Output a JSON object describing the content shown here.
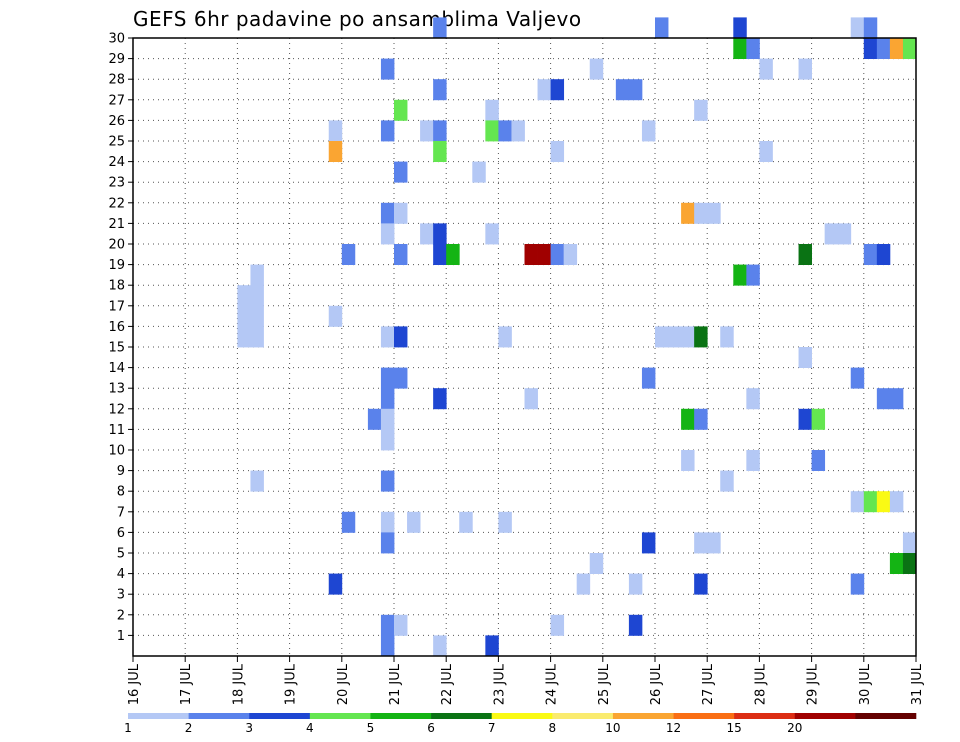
{
  "chart_data": {
    "type": "heatmap",
    "title": "GEFS 6hr padavine po ansamblima Valjevo",
    "xlabel": "",
    "ylabel": "",
    "x_ticks": [
      "16 JUL",
      "17 JUL",
      "18 JUL",
      "19 JUL",
      "20 JUL",
      "21 JUL",
      "22 JUL",
      "23 JUL",
      "24 JUL",
      "25 JUL",
      "26 JUL",
      "27 JUL",
      "28 JUL",
      "29 JUL",
      "30 JUL",
      "31 JUL"
    ],
    "x_range": [
      16,
      31
    ],
    "y_ticks": [
      1,
      2,
      3,
      4,
      5,
      6,
      7,
      8,
      9,
      10,
      11,
      12,
      13,
      14,
      15,
      16,
      17,
      18,
      19,
      20,
      21,
      22,
      23,
      24,
      25,
      26,
      27,
      28,
      29,
      30
    ],
    "y_range": [
      0,
      30
    ],
    "time_step_hours": 6,
    "grid": "dotted",
    "colorbar": {
      "levels": [
        "1",
        "2",
        "3",
        "4",
        "5",
        "6",
        "7",
        "8",
        "10",
        "12",
        "15",
        "20"
      ],
      "colors": [
        "#b4c8f5",
        "#5a82eb",
        "#1e46d2",
        "#64e650",
        "#14b414",
        "#0a7314",
        "#fafa14",
        "#faeb6e",
        "#faa532",
        "#fa6e14",
        "#dc2d14",
        "#a00000",
        "#640000"
      ]
    },
    "cells": [
      {
        "d": 21.75,
        "m": 30,
        "c": 2
      },
      {
        "d": 26.0,
        "m": 30,
        "c": 2
      },
      {
        "d": 27.5,
        "m": 30,
        "c": 3
      },
      {
        "d": 29.75,
        "m": 30,
        "c": 1
      },
      {
        "d": 30.0,
        "m": 30,
        "c": 2
      },
      {
        "d": 27.5,
        "m": 29,
        "c": 5
      },
      {
        "d": 27.75,
        "m": 29,
        "c": 2
      },
      {
        "d": 30.0,
        "m": 29,
        "c": 3
      },
      {
        "d": 30.25,
        "m": 29,
        "c": 2
      },
      {
        "d": 30.5,
        "m": 29,
        "c": 9
      },
      {
        "d": 30.75,
        "m": 29,
        "c": 4
      },
      {
        "d": 20.75,
        "m": 28,
        "c": 2
      },
      {
        "d": 24.75,
        "m": 28,
        "c": 1
      },
      {
        "d": 28.0,
        "m": 28,
        "c": 1
      },
      {
        "d": 28.75,
        "m": 28,
        "c": 1
      },
      {
        "d": 21.75,
        "m": 27,
        "c": 2
      },
      {
        "d": 23.75,
        "m": 27,
        "c": 1
      },
      {
        "d": 24.0,
        "m": 27,
        "c": 3
      },
      {
        "d": 25.25,
        "m": 27,
        "c": 2
      },
      {
        "d": 25.5,
        "m": 27,
        "c": 2
      },
      {
        "d": 21.0,
        "m": 26,
        "c": 4
      },
      {
        "d": 22.75,
        "m": 26,
        "c": 1
      },
      {
        "d": 26.75,
        "m": 26,
        "c": 1
      },
      {
        "d": 19.75,
        "m": 25,
        "c": 1
      },
      {
        "d": 20.75,
        "m": 25,
        "c": 2
      },
      {
        "d": 21.5,
        "m": 25,
        "c": 1
      },
      {
        "d": 21.75,
        "m": 25,
        "c": 2
      },
      {
        "d": 22.75,
        "m": 25,
        "c": 4
      },
      {
        "d": 23.0,
        "m": 25,
        "c": 2
      },
      {
        "d": 23.25,
        "m": 25,
        "c": 1
      },
      {
        "d": 25.75,
        "m": 25,
        "c": 1
      },
      {
        "d": 19.75,
        "m": 24,
        "c": 9
      },
      {
        "d": 21.75,
        "m": 24,
        "c": 4
      },
      {
        "d": 24.0,
        "m": 24,
        "c": 1
      },
      {
        "d": 28.0,
        "m": 24,
        "c": 1
      },
      {
        "d": 21.0,
        "m": 23,
        "c": 2
      },
      {
        "d": 22.5,
        "m": 23,
        "c": 1
      },
      {
        "d": 20.75,
        "m": 21,
        "c": 2
      },
      {
        "d": 21.0,
        "m": 21,
        "c": 1
      },
      {
        "d": 26.5,
        "m": 21,
        "c": 9
      },
      {
        "d": 26.75,
        "m": 21,
        "c": 1
      },
      {
        "d": 27.0,
        "m": 21,
        "c": 1
      },
      {
        "d": 20.75,
        "m": 20,
        "c": 1
      },
      {
        "d": 21.5,
        "m": 20,
        "c": 1
      },
      {
        "d": 21.75,
        "m": 20,
        "c": 3
      },
      {
        "d": 22.75,
        "m": 20,
        "c": 1
      },
      {
        "d": 29.25,
        "m": 20,
        "c": 1
      },
      {
        "d": 29.5,
        "m": 20,
        "c": 1
      },
      {
        "d": 20.0,
        "m": 19,
        "c": 2
      },
      {
        "d": 21.0,
        "m": 19,
        "c": 2
      },
      {
        "d": 21.75,
        "m": 19,
        "c": 3
      },
      {
        "d": 22.0,
        "m": 19,
        "c": 5
      },
      {
        "d": 23.5,
        "m": 19,
        "c": 12
      },
      {
        "d": 23.75,
        "m": 19,
        "c": 12
      },
      {
        "d": 24.0,
        "m": 19,
        "c": 2
      },
      {
        "d": 24.25,
        "m": 19,
        "c": 1
      },
      {
        "d": 28.75,
        "m": 19,
        "c": 6
      },
      {
        "d": 30.0,
        "m": 19,
        "c": 2
      },
      {
        "d": 30.25,
        "m": 19,
        "c": 3
      },
      {
        "d": 18.25,
        "m": 18,
        "c": 1
      },
      {
        "d": 27.5,
        "m": 18,
        "c": 5
      },
      {
        "d": 27.75,
        "m": 18,
        "c": 2
      },
      {
        "d": 18.0,
        "m": 17,
        "c": 1
      },
      {
        "d": 18.25,
        "m": 17,
        "c": 1
      },
      {
        "d": 18.0,
        "m": 16,
        "c": 1
      },
      {
        "d": 18.25,
        "m": 16,
        "c": 1
      },
      {
        "d": 19.75,
        "m": 16,
        "c": 1
      },
      {
        "d": 18.0,
        "m": 15,
        "c": 1
      },
      {
        "d": 18.25,
        "m": 15,
        "c": 1
      },
      {
        "d": 20.75,
        "m": 15,
        "c": 1
      },
      {
        "d": 21.0,
        "m": 15,
        "c": 3
      },
      {
        "d": 23.0,
        "m": 15,
        "c": 1
      },
      {
        "d": 26.0,
        "m": 15,
        "c": 1
      },
      {
        "d": 26.25,
        "m": 15,
        "c": 1
      },
      {
        "d": 26.5,
        "m": 15,
        "c": 1
      },
      {
        "d": 26.75,
        "m": 15,
        "c": 6
      },
      {
        "d": 27.25,
        "m": 15,
        "c": 1
      },
      {
        "d": 28.75,
        "m": 14,
        "c": 1
      },
      {
        "d": 20.75,
        "m": 13,
        "c": 2
      },
      {
        "d": 21.0,
        "m": 13,
        "c": 2
      },
      {
        "d": 25.75,
        "m": 13,
        "c": 2
      },
      {
        "d": 29.75,
        "m": 13,
        "c": 2
      },
      {
        "d": 20.75,
        "m": 12,
        "c": 2
      },
      {
        "d": 21.75,
        "m": 12,
        "c": 3
      },
      {
        "d": 23.5,
        "m": 12,
        "c": 1
      },
      {
        "d": 27.75,
        "m": 12,
        "c": 1
      },
      {
        "d": 30.25,
        "m": 12,
        "c": 2
      },
      {
        "d": 30.5,
        "m": 12,
        "c": 2
      },
      {
        "d": 20.5,
        "m": 11,
        "c": 2
      },
      {
        "d": 20.75,
        "m": 11,
        "c": 1
      },
      {
        "d": 26.5,
        "m": 11,
        "c": 5
      },
      {
        "d": 26.75,
        "m": 11,
        "c": 2
      },
      {
        "d": 28.75,
        "m": 11,
        "c": 3
      },
      {
        "d": 29.0,
        "m": 11,
        "c": 4
      },
      {
        "d": 20.75,
        "m": 10,
        "c": 1
      },
      {
        "d": 26.5,
        "m": 9,
        "c": 1
      },
      {
        "d": 27.75,
        "m": 9,
        "c": 1
      },
      {
        "d": 29.0,
        "m": 9,
        "c": 2
      },
      {
        "d": 18.25,
        "m": 8,
        "c": 1
      },
      {
        "d": 20.75,
        "m": 8,
        "c": 2
      },
      {
        "d": 27.25,
        "m": 8,
        "c": 1
      },
      {
        "d": 29.75,
        "m": 7,
        "c": 1
      },
      {
        "d": 30.0,
        "m": 7,
        "c": 4
      },
      {
        "d": 30.25,
        "m": 7,
        "c": 7
      },
      {
        "d": 30.5,
        "m": 7,
        "c": 1
      },
      {
        "d": 20.0,
        "m": 6,
        "c": 2
      },
      {
        "d": 20.75,
        "m": 6,
        "c": 1
      },
      {
        "d": 21.25,
        "m": 6,
        "c": 1
      },
      {
        "d": 22.25,
        "m": 6,
        "c": 1
      },
      {
        "d": 23.0,
        "m": 6,
        "c": 1
      },
      {
        "d": 20.75,
        "m": 5,
        "c": 2
      },
      {
        "d": 25.75,
        "m": 5,
        "c": 3
      },
      {
        "d": 26.75,
        "m": 5,
        "c": 1
      },
      {
        "d": 27.0,
        "m": 5,
        "c": 1
      },
      {
        "d": 30.75,
        "m": 5,
        "c": 1
      },
      {
        "d": 24.75,
        "m": 4,
        "c": 1
      },
      {
        "d": 30.5,
        "m": 4,
        "c": 5
      },
      {
        "d": 30.75,
        "m": 4,
        "c": 6
      },
      {
        "d": 19.75,
        "m": 3,
        "c": 3
      },
      {
        "d": 24.5,
        "m": 3,
        "c": 1
      },
      {
        "d": 25.5,
        "m": 3,
        "c": 1
      },
      {
        "d": 26.75,
        "m": 3,
        "c": 3
      },
      {
        "d": 29.75,
        "m": 3,
        "c": 2
      },
      {
        "d": 20.75,
        "m": 1,
        "c": 2
      },
      {
        "d": 21.0,
        "m": 1,
        "c": 1
      },
      {
        "d": 24.0,
        "m": 1,
        "c": 1
      },
      {
        "d": 25.5,
        "m": 1,
        "c": 3
      },
      {
        "d": 20.75,
        "m": 0,
        "c": 2
      },
      {
        "d": 21.75,
        "m": 0,
        "c": 1
      },
      {
        "d": 22.75,
        "m": 0,
        "c": 3
      }
    ]
  }
}
